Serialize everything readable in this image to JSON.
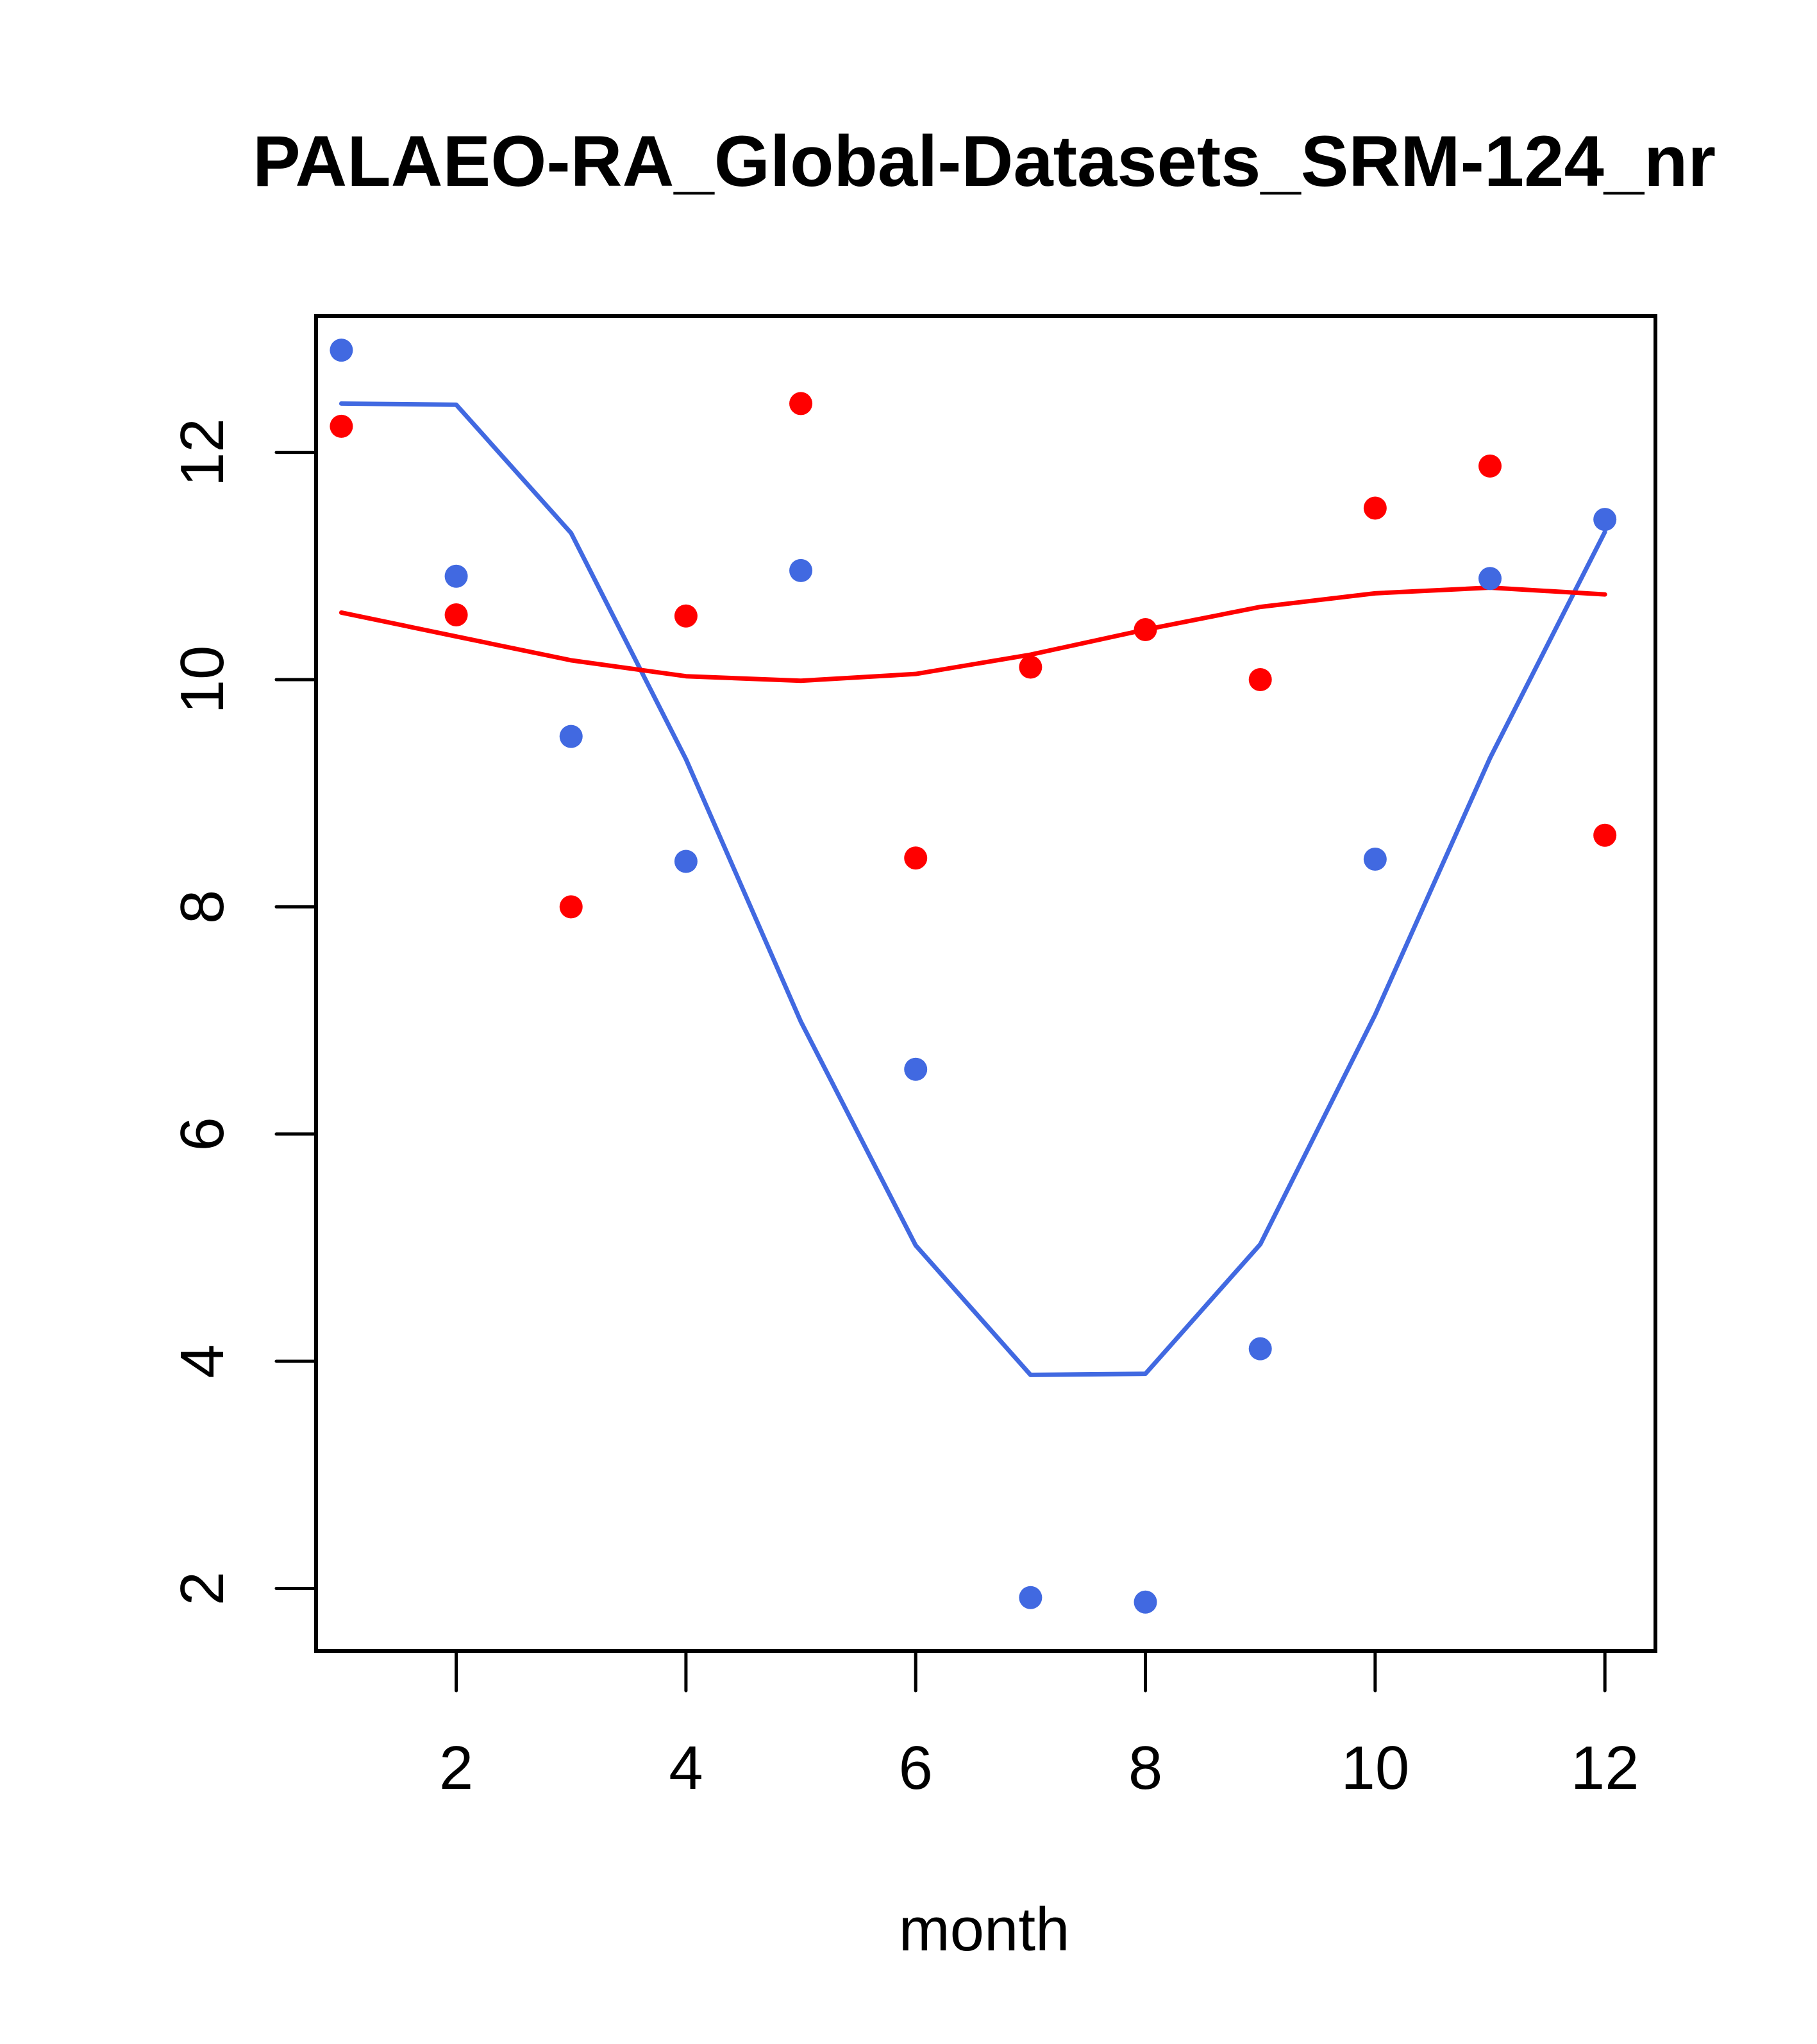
{
  "chart_data": {
    "type": "scatter",
    "title": "PALAEO-RA_Global-Datasets_SRM-124_nr",
    "xlabel": "month",
    "ylabel": "",
    "xlim": [
      0.78,
      12.44
    ],
    "ylim": [
      1.45,
      13.2
    ],
    "x_ticks": [
      2,
      4,
      6,
      8,
      10,
      12
    ],
    "y_ticks": [
      2,
      4,
      6,
      8,
      10,
      12
    ],
    "grid": false,
    "legend": null,
    "x": [
      1,
      2,
      3,
      4,
      5,
      6,
      7,
      8,
      9,
      10,
      11,
      12
    ],
    "series": [
      {
        "name": "blue-points",
        "kind": "points",
        "color": "#4169E1",
        "values": [
          12.9,
          10.91,
          9.5,
          8.4,
          10.96,
          6.57,
          1.92,
          1.88,
          4.11,
          8.42,
          10.89,
          11.41
        ]
      },
      {
        "name": "blue-line",
        "kind": "line",
        "color": "#4169E1",
        "values": [
          12.43,
          12.42,
          11.29,
          9.3,
          6.99,
          5.02,
          3.88,
          3.89,
          5.03,
          7.05,
          9.31,
          11.3
        ]
      },
      {
        "name": "red-points",
        "kind": "points",
        "color": "#FF0000",
        "values": [
          12.23,
          10.57,
          8.0,
          10.56,
          12.43,
          8.43,
          10.11,
          10.44,
          10.0,
          11.51,
          11.88,
          8.63
        ]
      },
      {
        "name": "red-line",
        "kind": "line",
        "color": "#FF0000",
        "values": [
          10.59,
          10.38,
          10.17,
          10.03,
          9.99,
          10.05,
          10.22,
          10.44,
          10.64,
          10.76,
          10.81,
          10.75
        ]
      }
    ]
  }
}
